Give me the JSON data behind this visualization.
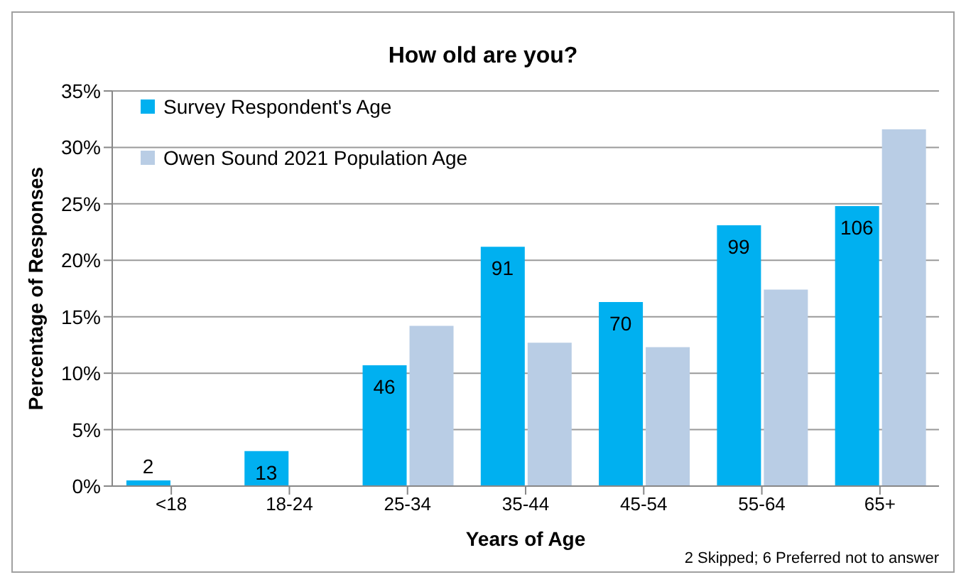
{
  "chart_data": {
    "type": "bar",
    "title": "How old are you?",
    "xlabel": "Years of Age",
    "ylabel": "Percentage of Responses",
    "categories": [
      "<18",
      "18-24",
      "25-34",
      "35-44",
      "45-54",
      "55-64",
      "65+"
    ],
    "series": [
      {
        "name": "Survey Respondent's Age",
        "color": "#00b0f0",
        "values": [
          0.5,
          3.1,
          10.7,
          21.2,
          16.3,
          23.1,
          24.8
        ]
      },
      {
        "name": "Owen Sound 2021 Population Age",
        "color": "#b9cde5",
        "values": [
          null,
          null,
          14.2,
          12.7,
          12.3,
          17.4,
          31.6
        ]
      }
    ],
    "ylim": [
      0,
      35
    ],
    "yticks": [
      {
        "value": 0,
        "label": "0%"
      },
      {
        "value": 5,
        "label": "5%"
      },
      {
        "value": 10,
        "label": "10%"
      },
      {
        "value": 15,
        "label": "15%"
      },
      {
        "value": 20,
        "label": "20%"
      },
      {
        "value": 25,
        "label": "25%"
      },
      {
        "value": 30,
        "label": "30%"
      },
      {
        "value": 35,
        "label": "35%"
      }
    ],
    "grid": "y",
    "legend": "top left",
    "annotations": [
      {
        "text": "2",
        "x": "<18",
        "y": 0.5
      },
      {
        "text": "13",
        "x": "18-24",
        "y": 3.1
      },
      {
        "text": "46",
        "x": "25-34",
        "y": 10.7
      },
      {
        "text": "91",
        "x": "35-44",
        "y": 21.2
      },
      {
        "text": "70",
        "x": "45-54",
        "y": 16.3
      },
      {
        "text": "99",
        "x": "55-64",
        "y": 23.1
      },
      {
        "text": "106",
        "x": "65+",
        "y": 24.8
      },
      "2 Skipped; 6 Preferred not to answer"
    ]
  }
}
